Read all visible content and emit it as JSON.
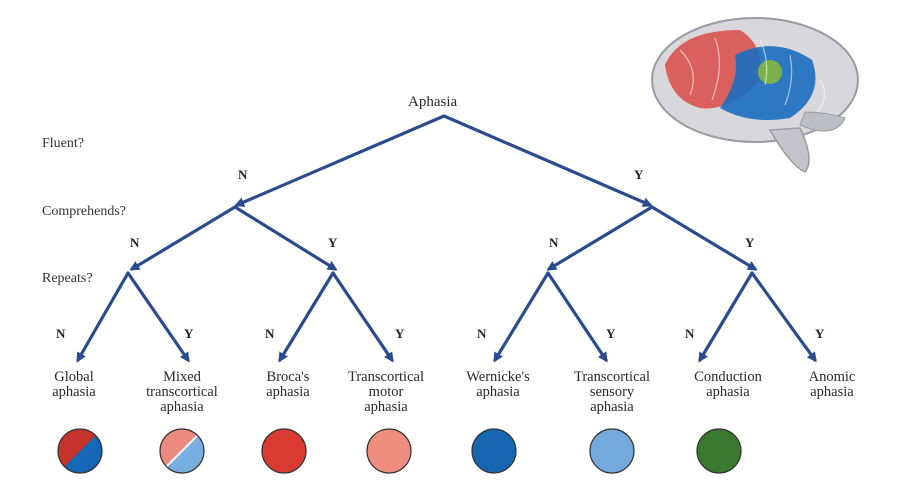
{
  "root": "Aphasia",
  "questions": {
    "fluent": "Fluent?",
    "comprehends": "Comprehends?",
    "repeats": "Repeats?"
  },
  "branch": {
    "n": "N",
    "y": "Y"
  },
  "leaves": [
    {
      "label": "Global\naphasia",
      "color": "#c8322d",
      "color2": "#1566b4",
      "split": true
    },
    {
      "label": "Mixed\ntranscortical\naphasia",
      "color": "#ec8b7d",
      "color2": "#78ade0",
      "split": true
    },
    {
      "label": "Broca's\naphasia",
      "color": "#d93a32",
      "split": false
    },
    {
      "label": "Transcortical\nmotor\naphasia",
      "color": "#ef8d7e",
      "split": false
    },
    {
      "label": "Wernicke's\naphasia",
      "color": "#1565b0",
      "split": false
    },
    {
      "label": "Transcortical\nsensory\naphasia",
      "color": "#73a9dd",
      "split": false
    },
    {
      "label": "Conduction\naphasia",
      "color": "#3a7a2e",
      "split": false
    },
    {
      "label": "Anomic\naphasia",
      "color": "",
      "split": false
    }
  ],
  "colors": {
    "arrow": "#2b4b8f",
    "brain_red": "#d9534f",
    "brain_blue": "#1e6fc0",
    "brain_green": "#7bb04a"
  }
}
